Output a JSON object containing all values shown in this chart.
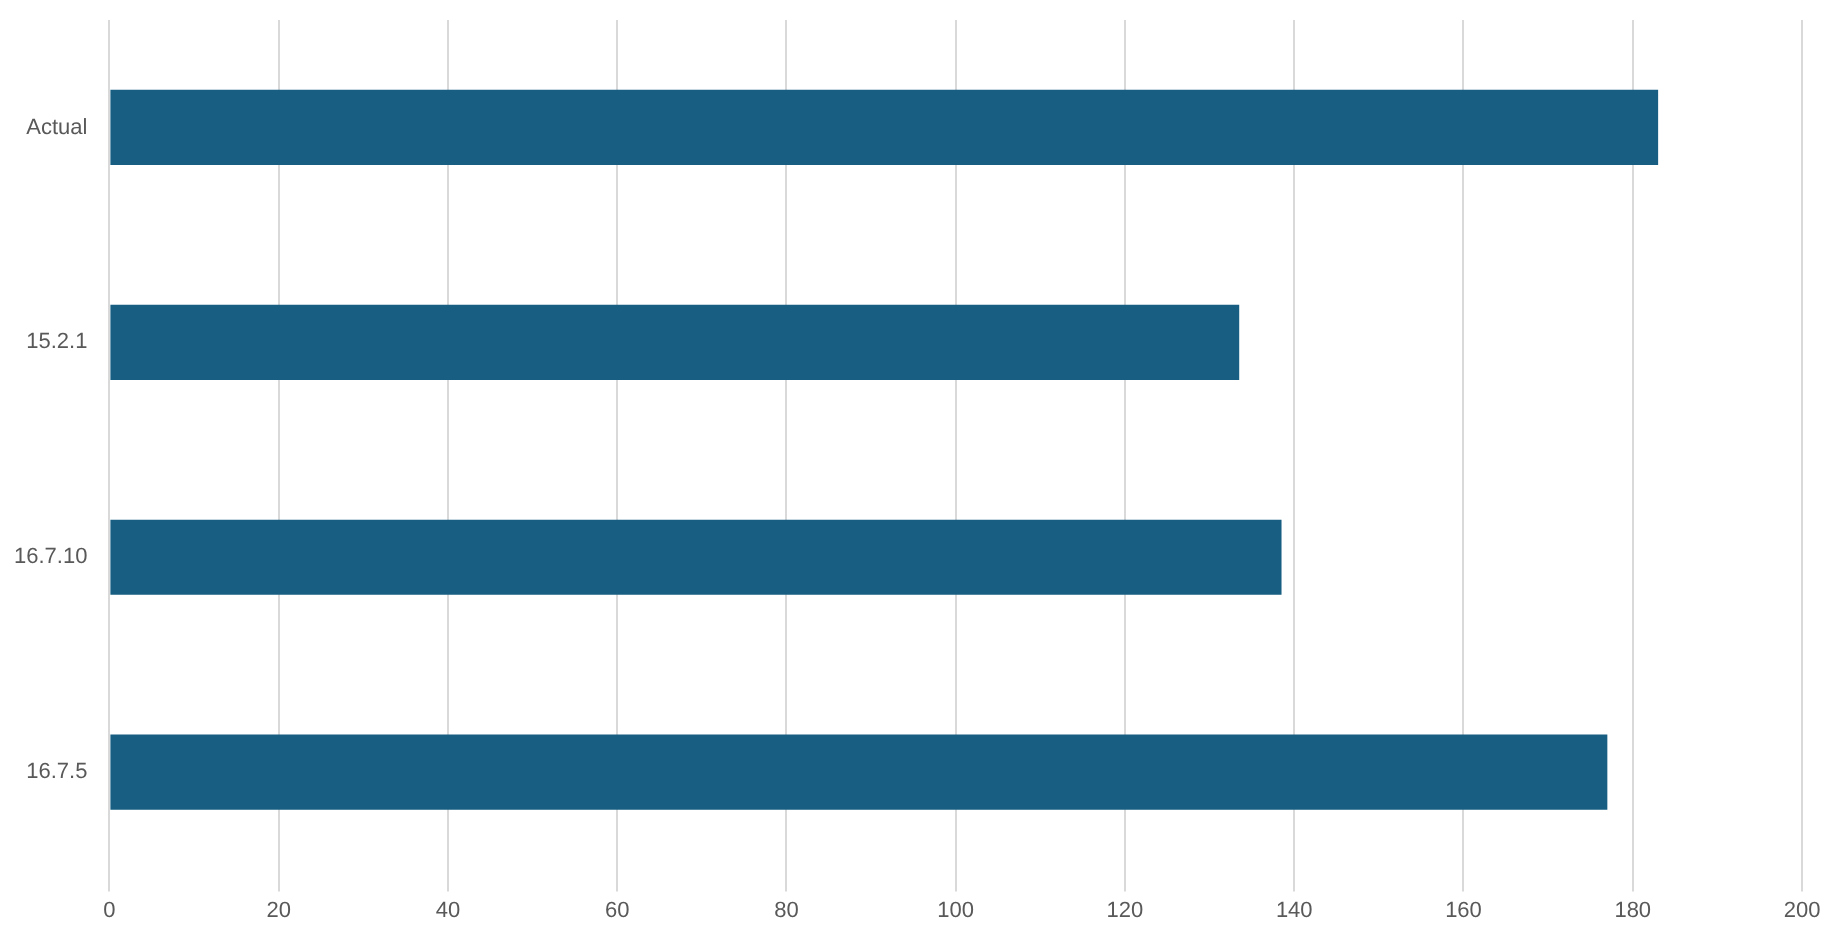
{
  "chart_data": {
    "type": "bar",
    "orientation": "horizontal",
    "categories": [
      "Actual",
      "15.2.1",
      "16.7.10",
      "16.7.5"
    ],
    "values": [
      183,
      133.5,
      138.5,
      177
    ],
    "color": "#175e82",
    "xlim": [
      0,
      200
    ],
    "xticks": [
      0,
      20,
      40,
      60,
      80,
      100,
      120,
      140,
      160,
      180,
      200
    ],
    "grid": "x",
    "legend": false
  }
}
